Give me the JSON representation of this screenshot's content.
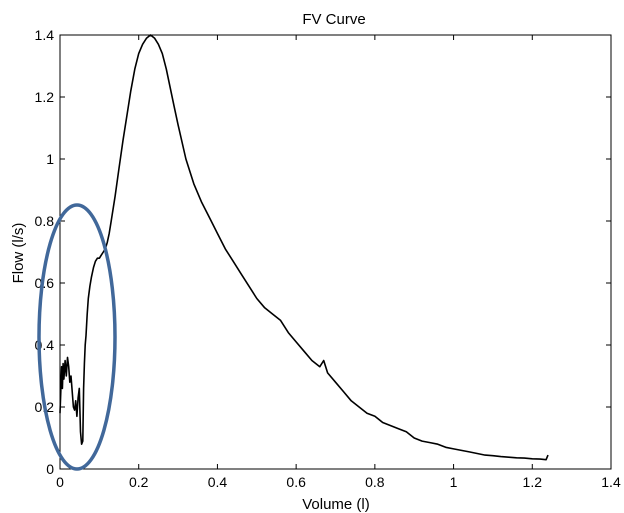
{
  "chart_data": {
    "type": "line",
    "title": "FV Curve",
    "xlabel": "Volume  (l)",
    "ylabel": "Flow (l/s)",
    "xlim": [
      0,
      1.4
    ],
    "ylim": [
      0,
      1.4
    ],
    "xticks": [
      "0",
      "0.2",
      "0.4",
      "0.6",
      "0.8",
      "1",
      "1.2",
      "1.4"
    ],
    "yticks": [
      "0",
      "0.2",
      "0.4",
      "0.6",
      "0.8",
      "1",
      "1.2",
      "1.4"
    ],
    "grid": false,
    "legend": "none",
    "series": [
      {
        "color": "#000000",
        "x": [
          0.0,
          0.002,
          0.004,
          0.006,
          0.008,
          0.01,
          0.013,
          0.016,
          0.019,
          0.022,
          0.025,
          0.028,
          0.031,
          0.034,
          0.037,
          0.04,
          0.043,
          0.046,
          0.049,
          0.052,
          0.055,
          0.058,
          0.06,
          0.062,
          0.064,
          0.066,
          0.069,
          0.072,
          0.076,
          0.08,
          0.085,
          0.09,
          0.095,
          0.1,
          0.105,
          0.11,
          0.115,
          0.12,
          0.125,
          0.13,
          0.14,
          0.15,
          0.16,
          0.17,
          0.18,
          0.19,
          0.2,
          0.21,
          0.22,
          0.23,
          0.24,
          0.25,
          0.26,
          0.27,
          0.28,
          0.29,
          0.3,
          0.32,
          0.34,
          0.36,
          0.38,
          0.4,
          0.42,
          0.44,
          0.46,
          0.48,
          0.5,
          0.52,
          0.54,
          0.56,
          0.58,
          0.6,
          0.62,
          0.64,
          0.66,
          0.67,
          0.68,
          0.7,
          0.72,
          0.74,
          0.76,
          0.78,
          0.8,
          0.82,
          0.84,
          0.86,
          0.88,
          0.9,
          0.92,
          0.94,
          0.96,
          0.98,
          1.0,
          1.02,
          1.04,
          1.06,
          1.08,
          1.1,
          1.12,
          1.14,
          1.16,
          1.18,
          1.2,
          1.22,
          1.235,
          1.24
        ],
        "y": [
          0.18,
          0.25,
          0.33,
          0.26,
          0.34,
          0.29,
          0.35,
          0.3,
          0.36,
          0.33,
          0.28,
          0.3,
          0.25,
          0.2,
          0.19,
          0.22,
          0.17,
          0.23,
          0.26,
          0.12,
          0.08,
          0.09,
          0.26,
          0.34,
          0.4,
          0.43,
          0.5,
          0.55,
          0.59,
          0.62,
          0.65,
          0.67,
          0.68,
          0.68,
          0.69,
          0.7,
          0.71,
          0.73,
          0.76,
          0.8,
          0.88,
          0.97,
          1.06,
          1.14,
          1.22,
          1.29,
          1.34,
          1.37,
          1.39,
          1.4,
          1.39,
          1.37,
          1.34,
          1.29,
          1.23,
          1.17,
          1.11,
          1.0,
          0.92,
          0.86,
          0.81,
          0.76,
          0.71,
          0.67,
          0.63,
          0.59,
          0.55,
          0.52,
          0.5,
          0.48,
          0.44,
          0.41,
          0.38,
          0.35,
          0.33,
          0.35,
          0.31,
          0.28,
          0.25,
          0.22,
          0.2,
          0.18,
          0.17,
          0.15,
          0.14,
          0.13,
          0.12,
          0.1,
          0.09,
          0.085,
          0.08,
          0.07,
          0.065,
          0.06,
          0.055,
          0.05,
          0.045,
          0.043,
          0.04,
          0.038,
          0.036,
          0.035,
          0.033,
          0.032,
          0.03,
          0.045
        ]
      }
    ]
  }
}
